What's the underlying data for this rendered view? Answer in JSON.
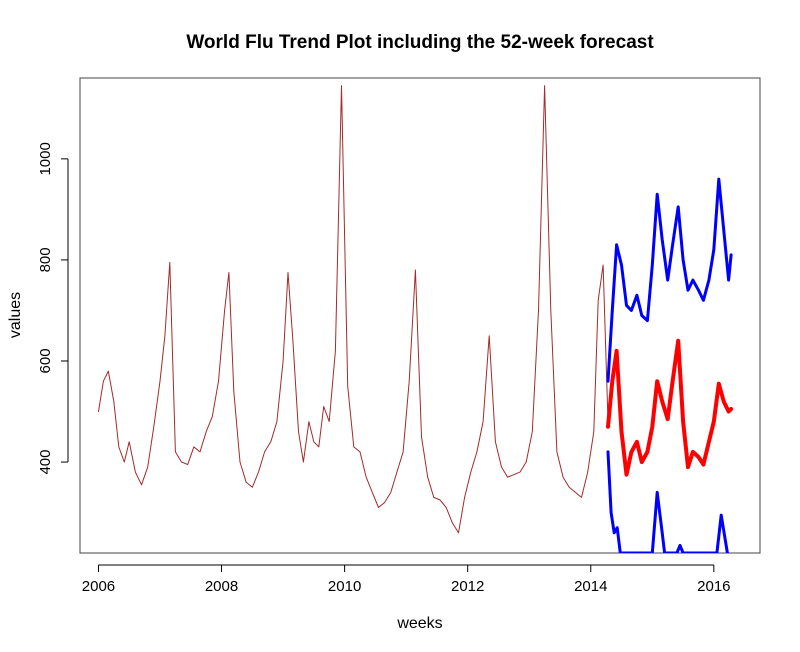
{
  "chart_data": {
    "type": "line",
    "title": "World Flu Trend Plot including the 52-week forecast",
    "xlabel": "weeks",
    "ylabel": "values",
    "xlim": [
      2005.7,
      2016.75
    ],
    "ylim": [
      220,
      1160
    ],
    "xticks": [
      2006,
      2008,
      2010,
      2012,
      2014,
      2016
    ],
    "yticks": [
      400,
      600,
      800,
      1000
    ],
    "grid": false,
    "colors": {
      "history": "#a52a2a",
      "forecast": "#ff0000",
      "bounds": "#0000ff"
    },
    "series": [
      {
        "key": "history",
        "x": [
          2006.0,
          2006.08,
          2006.16,
          2006.25,
          2006.33,
          2006.42,
          2006.5,
          2006.6,
          2006.7,
          2006.8,
          2006.9,
          2007.0,
          2007.08,
          2007.16,
          2007.25,
          2007.35,
          2007.45,
          2007.55,
          2007.65,
          2007.75,
          2007.85,
          2007.95,
          2008.05,
          2008.12,
          2008.2,
          2008.3,
          2008.4,
          2008.5,
          2008.6,
          2008.7,
          2008.8,
          2008.9,
          2009.0,
          2009.08,
          2009.16,
          2009.25,
          2009.33,
          2009.42,
          2009.5,
          2009.58,
          2009.66,
          2009.75,
          2009.85,
          2009.95,
          2010.05,
          2010.15,
          2010.25,
          2010.35,
          2010.45,
          2010.55,
          2010.65,
          2010.75,
          2010.85,
          2010.95,
          2011.05,
          2011.15,
          2011.25,
          2011.35,
          2011.45,
          2011.55,
          2011.65,
          2011.75,
          2011.85,
          2011.95,
          2012.05,
          2012.15,
          2012.25,
          2012.35,
          2012.45,
          2012.55,
          2012.65,
          2012.75,
          2012.85,
          2012.95,
          2013.05,
          2013.15,
          2013.25,
          2013.35,
          2013.45,
          2013.55,
          2013.65,
          2013.75,
          2013.85,
          2013.95,
          2014.05,
          2014.12,
          2014.2,
          2014.28
        ],
        "y": [
          500,
          560,
          580,
          520,
          430,
          400,
          440,
          380,
          355,
          390,
          470,
          560,
          650,
          795,
          420,
          400,
          395,
          430,
          420,
          460,
          490,
          560,
          700,
          775,
          540,
          400,
          360,
          350,
          380,
          420,
          440,
          480,
          600,
          775,
          640,
          460,
          400,
          480,
          440,
          430,
          510,
          480,
          620,
          1145,
          550,
          430,
          420,
          370,
          340,
          310,
          320,
          340,
          380,
          420,
          560,
          780,
          450,
          370,
          330,
          325,
          310,
          280,
          260,
          330,
          380,
          420,
          480,
          650,
          440,
          390,
          370,
          375,
          380,
          400,
          460,
          700,
          1145,
          700,
          420,
          370,
          350,
          340,
          330,
          380,
          460,
          720,
          790,
          480
        ]
      },
      {
        "key": "forecast",
        "x": [
          2014.28,
          2014.35,
          2014.42,
          2014.5,
          2014.58,
          2014.66,
          2014.75,
          2014.83,
          2014.92,
          2015.0,
          2015.08,
          2015.16,
          2015.25,
          2015.33,
          2015.42,
          2015.5,
          2015.58,
          2015.66,
          2015.75,
          2015.83,
          2015.92,
          2016.0,
          2016.08,
          2016.16,
          2016.24,
          2016.28
        ],
        "y": [
          470,
          560,
          620,
          460,
          375,
          420,
          440,
          400,
          420,
          470,
          560,
          520,
          485,
          560,
          640,
          480,
          390,
          420,
          410,
          395,
          440,
          480,
          555,
          520,
          500,
          505
        ]
      },
      {
        "key": "upper",
        "x": [
          2014.28,
          2014.35,
          2014.42,
          2014.5,
          2014.58,
          2014.66,
          2014.75,
          2014.83,
          2014.92,
          2015.0,
          2015.08,
          2015.16,
          2015.25,
          2015.33,
          2015.42,
          2015.5,
          2015.58,
          2015.66,
          2015.75,
          2015.83,
          2015.92,
          2016.0,
          2016.08,
          2016.16,
          2016.24,
          2016.28
        ],
        "y": [
          560,
          700,
          830,
          790,
          710,
          700,
          730,
          690,
          680,
          790,
          930,
          840,
          760,
          830,
          905,
          800,
          740,
          760,
          740,
          720,
          760,
          820,
          960,
          860,
          760,
          810
        ]
      },
      {
        "key": "lower",
        "x": [
          2014.28,
          2014.33,
          2014.38,
          2014.43,
          2014.48,
          2014.5,
          2015.0,
          2015.08,
          2015.16,
          2015.2,
          2015.4,
          2015.45,
          2015.5,
          2016.05,
          2016.12,
          2016.18,
          2016.22
        ],
        "y": [
          420,
          300,
          260,
          270,
          220,
          220,
          220,
          340,
          260,
          220,
          220,
          235,
          220,
          220,
          295,
          250,
          220
        ]
      }
    ]
  }
}
